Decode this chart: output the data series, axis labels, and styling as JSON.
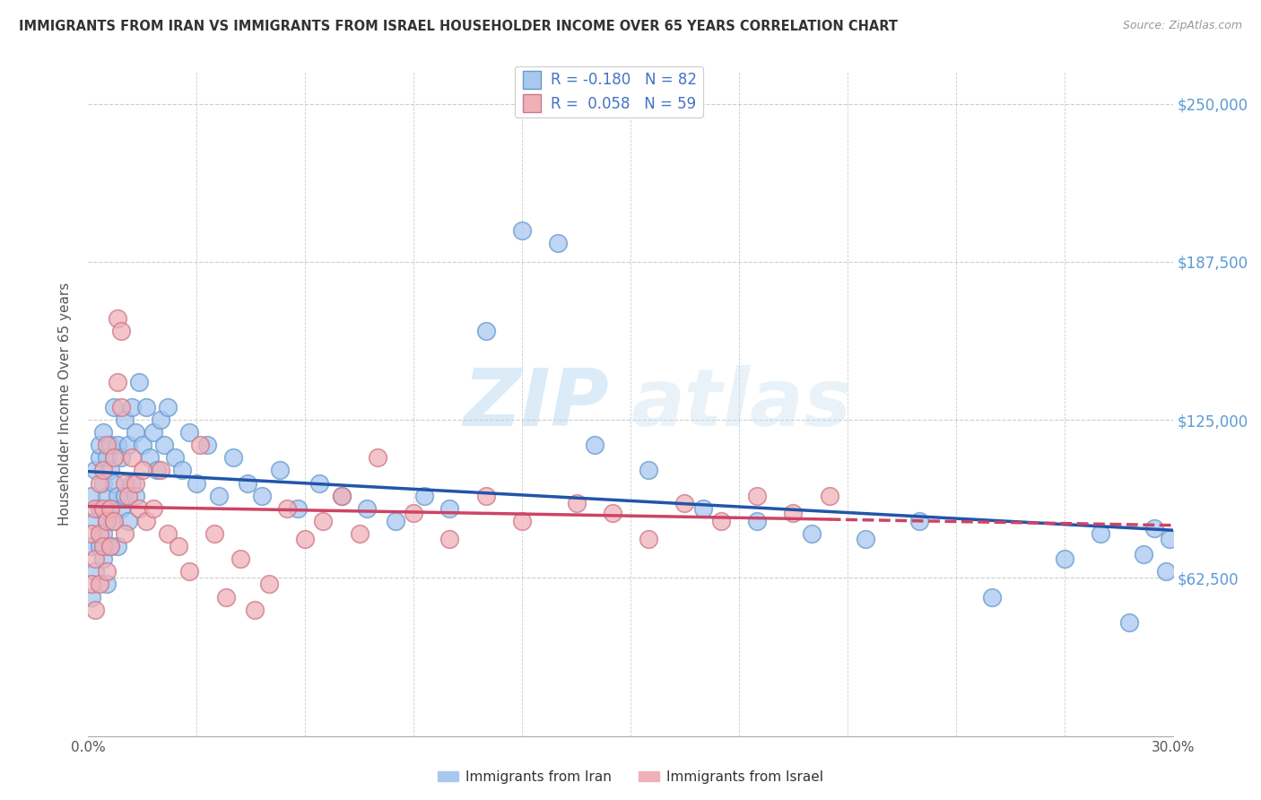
{
  "title": "IMMIGRANTS FROM IRAN VS IMMIGRANTS FROM ISRAEL HOUSEHOLDER INCOME OVER 65 YEARS CORRELATION CHART",
  "source": "Source: ZipAtlas.com",
  "ylabel": "Householder Income Over 65 years",
  "xlim": [
    0.0,
    0.3
  ],
  "ylim": [
    0,
    262500
  ],
  "yticks": [
    62500,
    125000,
    187500,
    250000
  ],
  "ytick_labels": [
    "$62,500",
    "$125,000",
    "$187,500",
    "$250,000"
  ],
  "iran_color": "#a8c8f0",
  "iran_edge_color": "#6699cc",
  "israel_color": "#f0b0b8",
  "israel_edge_color": "#cc7788",
  "iran_line_color": "#2255aa",
  "israel_line_color": "#cc4466",
  "iran_R": -0.18,
  "iran_N": 82,
  "israel_R": 0.058,
  "israel_N": 59,
  "legend_label_iran": "Immigrants from Iran",
  "legend_label_israel": "Immigrants from Israel",
  "watermark_zip": "ZIP",
  "watermark_atlas": "atlas",
  "background_color": "#ffffff",
  "grid_color": "#cccccc",
  "title_color": "#333333",
  "axis_label_color": "#555555",
  "right_tick_color": "#5b9bd5",
  "legend_text_color": "#4472c4",
  "iran_scatter_x": [
    0.001,
    0.001,
    0.001,
    0.002,
    0.002,
    0.002,
    0.003,
    0.003,
    0.003,
    0.003,
    0.004,
    0.004,
    0.004,
    0.004,
    0.005,
    0.005,
    0.005,
    0.005,
    0.006,
    0.006,
    0.006,
    0.006,
    0.007,
    0.007,
    0.007,
    0.008,
    0.008,
    0.008,
    0.009,
    0.009,
    0.01,
    0.01,
    0.011,
    0.011,
    0.012,
    0.012,
    0.013,
    0.013,
    0.014,
    0.015,
    0.016,
    0.017,
    0.018,
    0.019,
    0.02,
    0.021,
    0.022,
    0.024,
    0.026,
    0.028,
    0.03,
    0.033,
    0.036,
    0.04,
    0.044,
    0.048,
    0.053,
    0.058,
    0.064,
    0.07,
    0.077,
    0.085,
    0.093,
    0.1,
    0.11,
    0.12,
    0.13,
    0.14,
    0.155,
    0.17,
    0.185,
    0.2,
    0.215,
    0.23,
    0.25,
    0.27,
    0.28,
    0.288,
    0.292,
    0.295,
    0.298,
    0.299
  ],
  "iran_scatter_y": [
    95000,
    75000,
    55000,
    105000,
    85000,
    65000,
    110000,
    90000,
    75000,
    115000,
    100000,
    80000,
    120000,
    70000,
    95000,
    110000,
    85000,
    60000,
    105000,
    90000,
    75000,
    115000,
    100000,
    85000,
    130000,
    95000,
    115000,
    75000,
    110000,
    90000,
    125000,
    95000,
    115000,
    85000,
    130000,
    100000,
    120000,
    95000,
    140000,
    115000,
    130000,
    110000,
    120000,
    105000,
    125000,
    115000,
    130000,
    110000,
    105000,
    120000,
    100000,
    115000,
    95000,
    110000,
    100000,
    95000,
    105000,
    90000,
    100000,
    95000,
    90000,
    85000,
    95000,
    90000,
    160000,
    200000,
    195000,
    115000,
    105000,
    90000,
    85000,
    80000,
    78000,
    85000,
    55000,
    70000,
    80000,
    45000,
    72000,
    82000,
    65000,
    78000
  ],
  "israel_scatter_x": [
    0.001,
    0.001,
    0.002,
    0.002,
    0.002,
    0.003,
    0.003,
    0.003,
    0.004,
    0.004,
    0.004,
    0.005,
    0.005,
    0.005,
    0.006,
    0.006,
    0.007,
    0.007,
    0.008,
    0.008,
    0.009,
    0.009,
    0.01,
    0.01,
    0.011,
    0.012,
    0.013,
    0.014,
    0.015,
    0.016,
    0.018,
    0.02,
    0.022,
    0.025,
    0.028,
    0.031,
    0.035,
    0.038,
    0.042,
    0.046,
    0.05,
    0.055,
    0.06,
    0.065,
    0.07,
    0.075,
    0.08,
    0.09,
    0.1,
    0.11,
    0.12,
    0.135,
    0.145,
    0.155,
    0.165,
    0.175,
    0.185,
    0.195,
    0.205
  ],
  "israel_scatter_y": [
    80000,
    60000,
    90000,
    70000,
    50000,
    100000,
    80000,
    60000,
    90000,
    75000,
    105000,
    85000,
    65000,
    115000,
    90000,
    75000,
    110000,
    85000,
    165000,
    140000,
    130000,
    160000,
    100000,
    80000,
    95000,
    110000,
    100000,
    90000,
    105000,
    85000,
    90000,
    105000,
    80000,
    75000,
    65000,
    115000,
    80000,
    55000,
    70000,
    50000,
    60000,
    90000,
    78000,
    85000,
    95000,
    80000,
    110000,
    88000,
    78000,
    95000,
    85000,
    92000,
    88000,
    78000,
    92000,
    85000,
    95000,
    88000,
    95000
  ]
}
